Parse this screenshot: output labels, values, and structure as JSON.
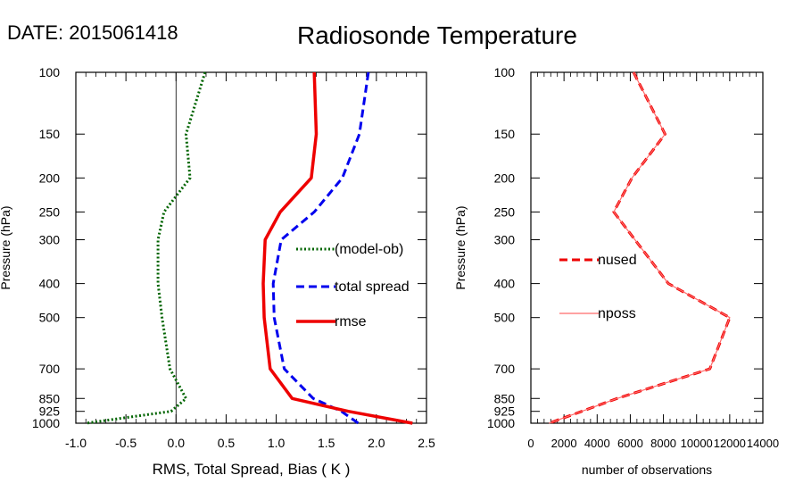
{
  "header": {
    "date_label": "DATE: 2015061418",
    "title": "Radiosonde Temperature"
  },
  "chart_data": [
    {
      "type": "line",
      "y_scale": "log",
      "y_reversed": true,
      "ylabel": "Pressure (hPa)",
      "xlabel": "RMS, Total Spread, Bias ( K )",
      "xlim": [
        -1.0,
        2.5
      ],
      "ylim": [
        1000,
        100
      ],
      "x_ticks": [
        -1.0,
        -0.5,
        0.0,
        0.5,
        1.0,
        1.5,
        2.0,
        2.5
      ],
      "x_tick_labels": [
        "-1.0",
        "-0.5",
        "0.0",
        "0.5",
        "1.0",
        "1.5",
        "2.0",
        "2.5"
      ],
      "y_ticks": [
        100,
        150,
        200,
        250,
        300,
        400,
        500,
        700,
        850,
        925,
        1000
      ],
      "y_tick_labels": [
        "100",
        "150",
        "200",
        "250",
        "300",
        "400",
        "500",
        "700",
        "850",
        "925",
        "1000"
      ],
      "zero_line": true,
      "legend_position": "right-middle",
      "series": [
        {
          "name": "(model-ob)",
          "color": "#006400",
          "style": "dotted",
          "pressure": [
            100,
            150,
            200,
            250,
            300,
            400,
            500,
            700,
            850,
            925,
            1000
          ],
          "values": [
            0.29,
            0.1,
            0.14,
            -0.12,
            -0.18,
            -0.18,
            -0.14,
            -0.06,
            0.1,
            -0.05,
            -0.9
          ]
        },
        {
          "name": "total spread",
          "color": "#0000ee",
          "style": "dashed",
          "pressure": [
            100,
            150,
            200,
            250,
            300,
            400,
            500,
            700,
            850,
            925,
            1000
          ],
          "values": [
            1.92,
            1.83,
            1.66,
            1.38,
            1.05,
            0.97,
            0.98,
            1.08,
            1.37,
            1.65,
            1.82
          ]
        },
        {
          "name": "rmse",
          "color": "#ee0000",
          "style": "solid",
          "pressure": [
            100,
            150,
            200,
            250,
            300,
            400,
            500,
            700,
            850,
            925,
            1000
          ],
          "values": [
            1.38,
            1.4,
            1.35,
            1.04,
            0.89,
            0.87,
            0.88,
            0.94,
            1.16,
            1.72,
            2.36
          ]
        }
      ]
    },
    {
      "type": "line",
      "y_scale": "log",
      "y_reversed": true,
      "ylabel": "Pressure (hPa)",
      "xlabel": "number of observations",
      "xlim": [
        0,
        14000
      ],
      "ylim": [
        1000,
        100
      ],
      "x_ticks": [
        0,
        2000,
        4000,
        6000,
        8000,
        10000,
        12000,
        14000
      ],
      "x_tick_labels": [
        "0",
        "2000",
        "4000",
        "6000",
        "8000",
        "10000",
        "12000",
        "14000"
      ],
      "y_ticks": [
        100,
        150,
        200,
        250,
        300,
        400,
        500,
        700,
        850,
        925,
        1000
      ],
      "y_tick_labels": [
        "100",
        "150",
        "200",
        "250",
        "300",
        "400",
        "500",
        "700",
        "850",
        "925",
        "1000"
      ],
      "legend_position": "left-middle",
      "series": [
        {
          "name": "nused",
          "color": "#ee0000",
          "style": "dashed",
          "pressure": [
            100,
            150,
            200,
            250,
            400,
            500,
            700,
            850,
            1000
          ],
          "values": [
            6200,
            8100,
            6100,
            5000,
            8300,
            12000,
            10800,
            5200,
            1100
          ]
        },
        {
          "name": "nposs",
          "color": "#ff6a6a",
          "style": "solid",
          "pressure": [
            100,
            150,
            200,
            250,
            400,
            500,
            700,
            850,
            1000
          ],
          "values": [
            6200,
            8100,
            6100,
            5000,
            8300,
            12000,
            10800,
            5200,
            1100
          ]
        }
      ]
    }
  ]
}
